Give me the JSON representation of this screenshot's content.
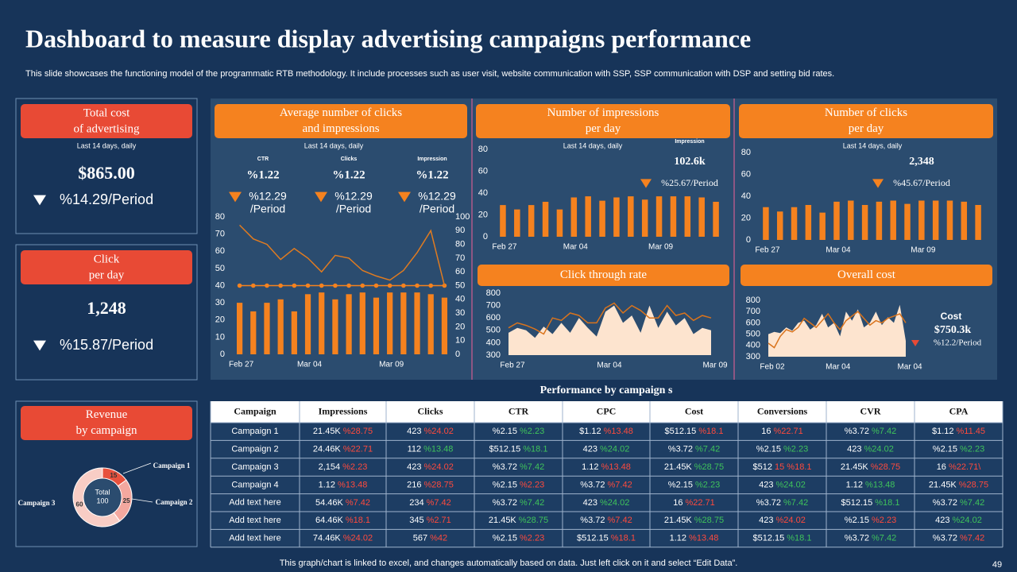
{
  "header": {
    "title": "Dashboard to measure display advertising campaigns performance",
    "subtitle": "This slide showcases the functioning model of the programmatic RTB methodology. It include processes such as user visit, website communication with SSP, SSP communication with DSP and setting bid rates."
  },
  "kpis": [
    {
      "title": [
        "Total cost",
        "of advertising"
      ],
      "note": "Last 14 days, daily",
      "value": "$865.00",
      "change": "%14.29/Period"
    },
    {
      "title": [
        "Click",
        "per day"
      ],
      "value": "1,248",
      "change": "%15.87/Period"
    }
  ],
  "chart_data": [
    {
      "type": "combo",
      "title": [
        "Average number  of clicks",
        "and impressions"
      ],
      "note": "Last 14 days, daily",
      "metrics": [
        {
          "name": "CTR",
          "value": "%1.22",
          "change": [
            "%12.29",
            "/Period"
          ]
        },
        {
          "name": "Clicks",
          "value": "%1.22",
          "change": [
            "%12.29",
            "/Period"
          ]
        },
        {
          "name": "Impression",
          "value": "%1.22",
          "change": [
            "%12.29",
            "/Period"
          ]
        }
      ],
      "categories": [
        "Feb 27",
        null,
        null,
        null,
        null,
        "Mar 04",
        null,
        null,
        null,
        null,
        null,
        "Mar 09",
        null,
        null,
        null,
        null
      ],
      "ylim": [
        0,
        80
      ],
      "yticks": [
        0,
        10,
        20,
        30,
        40,
        50,
        60,
        70,
        80
      ],
      "y2lim": [
        0,
        100
      ],
      "y2ticks": [
        0,
        10,
        20,
        30,
        40,
        50,
        60,
        70,
        80,
        90,
        100
      ],
      "series": [
        {
          "kind": "bar",
          "color": "#f5821f",
          "values": [
            30,
            25,
            30,
            32,
            25,
            35,
            36,
            32,
            35,
            36,
            33,
            36,
            36,
            36,
            35,
            33
          ]
        },
        {
          "kind": "line",
          "color": "#f5821f",
          "markers": true,
          "values": [
            40,
            40,
            40,
            40,
            40,
            40,
            40,
            40,
            40,
            40,
            40,
            40,
            40,
            40,
            40,
            40
          ]
        },
        {
          "kind": "line",
          "color": "#e07b20",
          "axis": "y2",
          "values": [
            94,
            84,
            80,
            69,
            77,
            70,
            60,
            72,
            70,
            61,
            57,
            54,
            61,
            74,
            90,
            50
          ]
        }
      ]
    },
    {
      "type": "bar",
      "title": [
        "Number of impressions",
        "per day"
      ],
      "note": "Last 14 days, daily",
      "annotation": {
        "label": "Impression",
        "value": "102.6k",
        "change": "%25.67/Period"
      },
      "categories": [
        "Feb 27",
        null,
        null,
        null,
        null,
        "Mar 04",
        null,
        null,
        null,
        null,
        null,
        "Mar 09",
        null,
        null,
        null,
        null
      ],
      "ylim": [
        0,
        80
      ],
      "yticks": [
        0,
        20,
        40,
        60,
        80
      ],
      "series": [
        {
          "kind": "bar",
          "color": "#f5821f",
          "values": [
            29,
            25,
            29,
            32,
            25,
            36,
            37,
            33,
            36,
            37,
            34,
            37,
            37,
            37,
            36,
            32
          ]
        }
      ]
    },
    {
      "type": "bar",
      "title": [
        "Number of clicks",
        "per day"
      ],
      "note": "Last 14 days, daily",
      "annotation": {
        "value": "2,348",
        "change": "%45.67/Period"
      },
      "categories": [
        "Feb 27",
        null,
        null,
        null,
        null,
        "Mar 04",
        null,
        null,
        null,
        null,
        null,
        "Mar 09",
        null,
        null,
        null,
        null
      ],
      "ylim": [
        0,
        80
      ],
      "yticks": [
        0,
        20,
        40,
        60,
        80
      ],
      "series": [
        {
          "kind": "bar",
          "color": "#f5821f",
          "values": [
            30,
            26,
            30,
            32,
            25,
            35,
            36,
            32,
            35,
            36,
            33,
            36,
            36,
            36,
            35,
            32
          ]
        }
      ]
    },
    {
      "type": "area",
      "title": [
        "Click through rate"
      ],
      "categories": [
        "Feb 27",
        null,
        null,
        null,
        null,
        null,
        null,
        null,
        null,
        null,
        null,
        "Mar 04",
        null,
        null,
        null,
        null,
        null,
        null,
        null,
        null,
        null,
        null,
        null,
        "Mar 09"
      ],
      "ylim": [
        300,
        800
      ],
      "yticks": [
        300,
        400,
        500,
        600,
        700,
        800
      ],
      "series": [
        {
          "kind": "area",
          "color": "#fde4cf",
          "values": [
            480,
            520,
            500,
            440,
            530,
            470,
            560,
            480,
            600,
            520,
            450,
            650,
            700,
            560,
            620,
            480,
            700,
            520,
            650,
            540,
            600,
            470,
            520,
            500
          ]
        },
        {
          "kind": "line",
          "color": "#d9731c",
          "values": [
            520,
            560,
            540,
            510,
            470,
            600,
            580,
            640,
            620,
            560,
            560,
            680,
            720,
            640,
            700,
            660,
            600,
            600,
            700,
            620,
            640,
            580,
            620,
            600
          ]
        }
      ]
    },
    {
      "type": "area",
      "title": [
        "Overall cost"
      ],
      "annotation": {
        "label": "Cost",
        "value": "$750.3k",
        "change": "%12.2/Period"
      },
      "categories": [
        "Feb 02",
        null,
        null,
        null,
        null,
        null,
        null,
        null,
        null,
        null,
        null,
        "Mar 04",
        null,
        null,
        null,
        null,
        null,
        null,
        null,
        null,
        null,
        null,
        null,
        "Mar 04"
      ],
      "ylim": [
        300,
        800
      ],
      "yticks": [
        300,
        400,
        500,
        600,
        700,
        800
      ],
      "series": [
        {
          "kind": "area",
          "color": "#fde4cf",
          "values": [
            500,
            520,
            510,
            560,
            530,
            600,
            620,
            540,
            580,
            680,
            560,
            600,
            480,
            700,
            620,
            720,
            560,
            600,
            700,
            580,
            650,
            600,
            760,
            440
          ]
        },
        {
          "kind": "line",
          "color": "#d9731c",
          "values": [
            420,
            380,
            480,
            540,
            520,
            560,
            640,
            600,
            560,
            620,
            680,
            600,
            540,
            620,
            660,
            700,
            640,
            580,
            620,
            600,
            640,
            660,
            680,
            600
          ]
        }
      ]
    },
    {
      "type": "pie",
      "title": [
        "Revenue",
        "by campaign"
      ],
      "center_label": "Total",
      "total": 100,
      "categories": [
        "Campaign 1",
        "Campaign 2",
        "Campaign 3"
      ],
      "values": [
        15,
        25,
        60
      ],
      "colors": [
        "#e8513d",
        "#f3a89f",
        "#f8cdc5"
      ]
    }
  ],
  "table": {
    "title": "Performance  by campaign  s",
    "columns": [
      "Campaign",
      "Impressions",
      "Clicks",
      "CTR",
      "CPC",
      "Cost",
      "Conversions",
      "CVR",
      "CPA"
    ],
    "change_colors": {
      "red": "#ff4a3d",
      "green": "#3fc35b"
    },
    "rows": [
      [
        "Campaign  1",
        [
          "21.45K",
          "%28.75",
          "red"
        ],
        [
          "423",
          "%24.02",
          "red"
        ],
        [
          "%2.15",
          "%2.23",
          "green"
        ],
        [
          "$1.12",
          "%13.48",
          "red"
        ],
        [
          "$512.15",
          "%18.1",
          "red"
        ],
        [
          "16",
          "%22.71",
          "red"
        ],
        [
          "%3.72",
          "%7.42",
          "green"
        ],
        [
          "$1.12",
          "%11.45",
          "red"
        ]
      ],
      [
        "Campaign  2",
        [
          "24.46K",
          "%22.71",
          "red"
        ],
        [
          "112",
          "%13.48",
          "green"
        ],
        [
          "$512.15",
          "%18.1",
          "green"
        ],
        [
          "423",
          "%24.02",
          "green"
        ],
        [
          "%3.72",
          "%7.42",
          "green"
        ],
        [
          "%2.15",
          "%2.23",
          "green"
        ],
        [
          "423",
          "%24.02",
          "green"
        ],
        [
          "%2.15",
          "%2.23",
          "green"
        ]
      ],
      [
        "Campaign  3",
        [
          "2,154",
          "%2.23",
          "red"
        ],
        [
          "423",
          "%24.02",
          "red"
        ],
        [
          "%3.72",
          "%7.42",
          "green"
        ],
        [
          "1.12",
          "%13.48",
          "red"
        ],
        [
          "21.45K",
          "%28.75",
          "green"
        ],
        [
          "$512",
          "15 %18.1",
          "red"
        ],
        [
          "21.45K",
          "%28.75",
          "red"
        ],
        [
          "16",
          "%22.71\\",
          "red"
        ]
      ],
      [
        "Campaign  4",
        [
          "1.12",
          "%13.48",
          "red"
        ],
        [
          "216",
          "%28.75",
          "red"
        ],
        [
          "%2.15",
          "%2.23",
          "red"
        ],
        [
          "%3.72",
          "%7.42",
          "red"
        ],
        [
          "%2.15",
          "%2.23",
          "green"
        ],
        [
          "423",
          "%24.02",
          "green"
        ],
        [
          "1.12",
          "%13.48",
          "green"
        ],
        [
          "21.45K",
          "%28.75",
          "red"
        ]
      ],
      [
        "Add text here",
        [
          "54.46K",
          "%7.42",
          "red"
        ],
        [
          "234",
          "%7.42",
          "red"
        ],
        [
          "%3.72",
          "%7.42",
          "green"
        ],
        [
          "423",
          "%24.02",
          "green"
        ],
        [
          "16",
          "%22.71",
          "red"
        ],
        [
          "%3.72",
          "%7.42",
          "green"
        ],
        [
          "$512.15",
          "%18.1",
          "green"
        ],
        [
          "%3.72",
          "%7.42",
          "green"
        ]
      ],
      [
        "Add text here",
        [
          "64.46K",
          "%18.1",
          "red"
        ],
        [
          "345",
          "%2.71",
          "red"
        ],
        [
          "21.45K",
          "%28.75",
          "green"
        ],
        [
          "%3.72",
          "%7.42",
          "red"
        ],
        [
          "21.45K",
          "%28.75",
          "green"
        ],
        [
          "423",
          "%24.02",
          "red"
        ],
        [
          "%2.15",
          "%2.23",
          "red"
        ],
        [
          "423",
          "%24.02",
          "green"
        ]
      ],
      [
        "Add text here",
        [
          "74.46K",
          "%24.02",
          "red"
        ],
        [
          "567",
          "%42",
          "red"
        ],
        [
          "%2.15",
          "%2.23",
          "red"
        ],
        [
          "$512.15",
          "%18.1",
          "red"
        ],
        [
          "1.12",
          "%13.48",
          "red"
        ],
        [
          "$512.15",
          "%18.1",
          "green"
        ],
        [
          "%3.72",
          "%7.42",
          "green"
        ],
        [
          "%3.72",
          "%7.42",
          "red"
        ]
      ]
    ]
  },
  "footer": {
    "note": "This graph/chart is linked to excel, and changes automatically based on data. Just left click on it and select “Edit Data”.",
    "page": "49"
  }
}
